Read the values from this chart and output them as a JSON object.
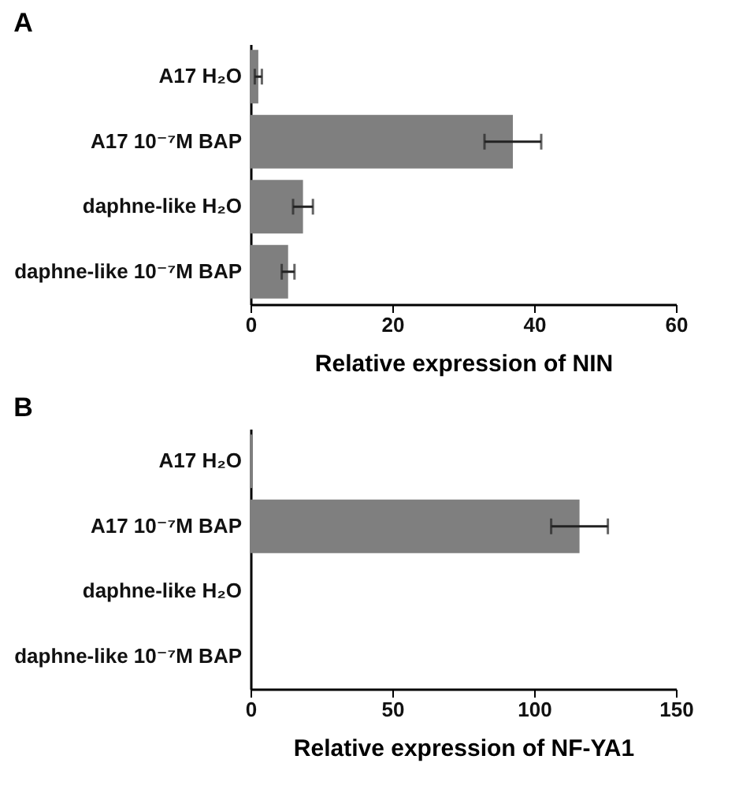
{
  "chart_data": [
    {
      "type": "bar",
      "title": "A",
      "orientation": "horizontal",
      "xlabel": "Relative expression of NIN",
      "categories": [
        "A17 H₂O",
        "A17 10⁻⁷M BAP",
        "daphne-like H₂O",
        "daphne-like 10⁻⁷M BAP"
      ],
      "values": [
        1.1,
        37,
        7.4,
        5.3
      ],
      "errors": [
        0.5,
        4,
        1.4,
        0.9
      ],
      "color": "#7f7f7f",
      "xlim": [
        0,
        60
      ],
      "xticks": [
        0,
        20,
        40,
        60
      ],
      "grid": false
    },
    {
      "type": "bar",
      "title": "B",
      "orientation": "horizontal",
      "xlabel": "Relative expression of NF-YA1",
      "categories": [
        "A17 H₂O",
        "A17 10⁻⁷M BAP",
        "daphne-like H₂O",
        "daphne-like 10⁻⁷M BAP"
      ],
      "values": [
        0.8,
        116,
        0,
        0
      ],
      "errors": [
        null,
        10,
        null,
        null
      ],
      "color": "#7f7f7f",
      "xlim": [
        0,
        150
      ],
      "xticks": [
        0,
        50,
        100,
        150
      ],
      "grid": false
    }
  ]
}
